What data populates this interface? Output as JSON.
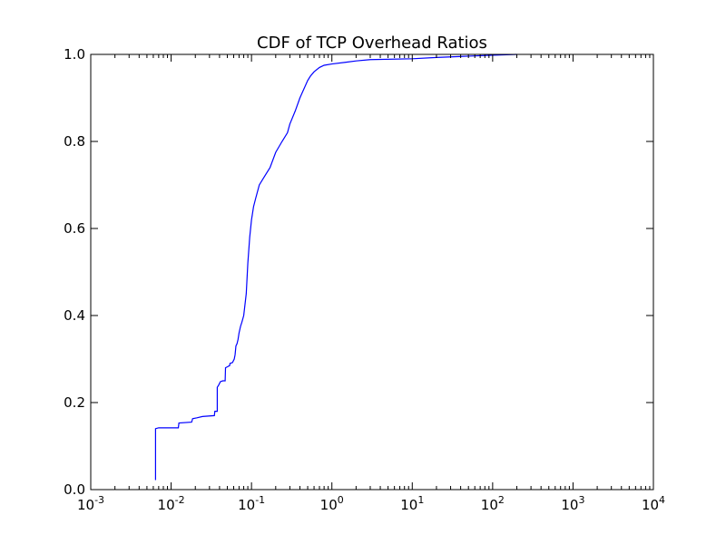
{
  "chart_data": {
    "type": "line",
    "title": "CDF of TCP Overhead Ratios",
    "xlabel": "",
    "ylabel": "",
    "xscale": "log",
    "xlim": [
      0.001,
      10000
    ],
    "ylim": [
      0.0,
      1.0
    ],
    "grid": false,
    "x_ticks": [
      {
        "base": "10",
        "exp": "-3"
      },
      {
        "base": "10",
        "exp": "-2"
      },
      {
        "base": "10",
        "exp": "-1"
      },
      {
        "base": "10",
        "exp": "0"
      },
      {
        "base": "10",
        "exp": "1"
      },
      {
        "base": "10",
        "exp": "2"
      },
      {
        "base": "10",
        "exp": "3"
      },
      {
        "base": "10",
        "exp": "4"
      }
    ],
    "y_ticks": [
      "0.0",
      "0.2",
      "0.4",
      "0.6",
      "0.8",
      "1.0"
    ],
    "series": [
      {
        "color": "#0000ff",
        "x": [
          0.0064,
          0.0064,
          0.007,
          0.0123,
          0.0125,
          0.018,
          0.0185,
          0.021,
          0.0245,
          0.0345,
          0.035,
          0.0375,
          0.0375,
          0.039,
          0.041,
          0.044,
          0.047,
          0.0475,
          0.05,
          0.0535,
          0.054,
          0.058,
          0.061,
          0.0625,
          0.064,
          0.066,
          0.068,
          0.07,
          0.073,
          0.076,
          0.08,
          0.086,
          0.09,
          0.095,
          0.1,
          0.102,
          0.106,
          0.113,
          0.125,
          0.14,
          0.17,
          0.2,
          0.24,
          0.28,
          0.3,
          0.35,
          0.4,
          0.5,
          0.54,
          0.6,
          0.7,
          0.8,
          1.0,
          1.5,
          2.0,
          3.0,
          10.0,
          20.0,
          50.0,
          100.0,
          200.0
        ],
        "y": [
          0.022,
          0.14,
          0.142,
          0.142,
          0.153,
          0.155,
          0.163,
          0.165,
          0.168,
          0.17,
          0.18,
          0.18,
          0.235,
          0.24,
          0.248,
          0.25,
          0.25,
          0.28,
          0.282,
          0.285,
          0.29,
          0.292,
          0.3,
          0.31,
          0.33,
          0.335,
          0.345,
          0.36,
          0.375,
          0.385,
          0.4,
          0.45,
          0.52,
          0.58,
          0.62,
          0.63,
          0.65,
          0.67,
          0.7,
          0.715,
          0.74,
          0.775,
          0.8,
          0.82,
          0.84,
          0.87,
          0.9,
          0.94,
          0.95,
          0.96,
          0.97,
          0.975,
          0.978,
          0.982,
          0.985,
          0.988,
          0.99,
          0.993,
          0.996,
          0.998,
          1.0
        ]
      }
    ]
  }
}
